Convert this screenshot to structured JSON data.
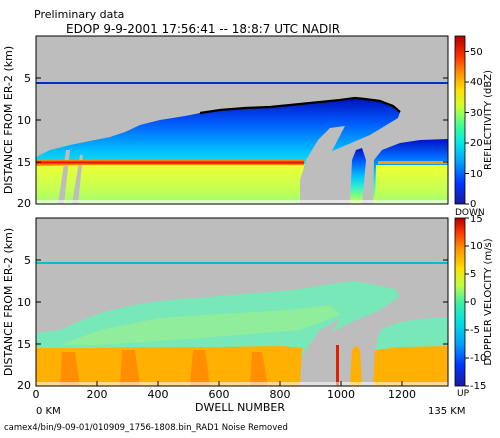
{
  "header": {
    "preliminary": "Preliminary data",
    "title": "EDOP  9-9-2001    17:56:41  --  18:8:7 UTC   NADIR"
  },
  "footer": {
    "start_km": "0 KM",
    "end_km": "135 KM",
    "file_path": "camex4/bin/9-09-01/010909_1756-1808.bin_RAD1 Noise Removed"
  },
  "chart_data": [
    {
      "type": "heatmap",
      "xlabel": "",
      "ylabel": "DISTANCE FROM ER-2 (km)",
      "xlim": [
        0,
        1350
      ],
      "ylim": [
        20,
        0
      ],
      "y_ticks": [
        5,
        10,
        15,
        20
      ],
      "x_ticks": [],
      "colorbar": {
        "label": "REFLECTIVITY (dBZ)",
        "range": [
          0,
          55
        ],
        "ticks": [
          0,
          10,
          20,
          30,
          40,
          50
        ],
        "end_label": "DOWN"
      },
      "features": {
        "aircraft_line_km": 5.6,
        "bright_band_km": 15.3,
        "main_cloud_top_km": [
          [
            0,
            14.0
          ],
          [
            150,
            12.5
          ],
          [
            300,
            11.5
          ],
          [
            500,
            10.3
          ],
          [
            700,
            10.0
          ],
          [
            850,
            9.4
          ],
          [
            1000,
            8.8
          ],
          [
            1130,
            9.3
          ]
        ],
        "echo_free_gaps": [
          [
            870,
            980
          ],
          [
            1030,
            1120
          ]
        ],
        "right_cells": [
          [
            1120,
            1160,
            13.5
          ],
          [
            1190,
            1350,
            12.8
          ]
        ]
      }
    },
    {
      "type": "heatmap",
      "xlabel": "DWELL NUMBER",
      "ylabel": "DISTANCE FROM ER-2 (km)",
      "xlim": [
        0,
        1350
      ],
      "ylim": [
        20,
        0
      ],
      "y_ticks": [
        5,
        10,
        15,
        20
      ],
      "x_ticks": [
        0,
        200,
        400,
        600,
        800,
        1000,
        1200
      ],
      "colorbar": {
        "label": "DOPPLER VELOCITY (m/s)",
        "range": [
          -15,
          15
        ],
        "ticks": [
          -15,
          -10,
          -5,
          0,
          5,
          10,
          15
        ],
        "end_label": "UP"
      },
      "features": {
        "aircraft_line_km": 5.6,
        "melting_level_km": 15.4,
        "rain_fall_speed_ms": 8,
        "snow_fall_speed_ms": 3
      }
    }
  ]
}
